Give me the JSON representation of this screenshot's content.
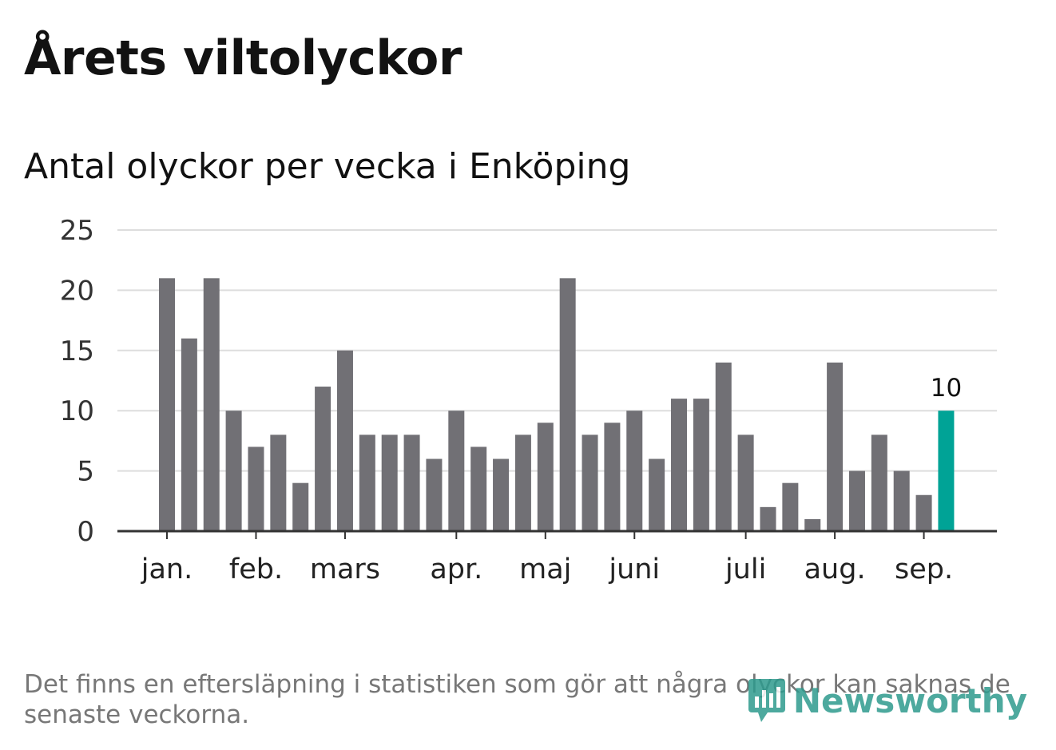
{
  "title": "Årets viltolyckor",
  "subtitle": "Antal olyckor per vecka i Enköping",
  "footnote": "Det finns en eftersläpning i statistiken som gör att några olyckor kan saknas de senaste veckorna.",
  "brand": {
    "name": "Newsworthy",
    "icon": "newsworthy-logo-icon"
  },
  "colors": {
    "bar": "#717075",
    "highlight": "#00a396",
    "grid": "#dddddd",
    "axis": "#333333"
  },
  "chart_data": {
    "type": "bar",
    "title": "Antal olyckor per vecka i Enköping",
    "xlabel": "",
    "ylabel": "",
    "ylim": [
      0,
      25
    ],
    "yticks": [
      0,
      5,
      10,
      15,
      20,
      25
    ],
    "grid": true,
    "values": [
      21,
      16,
      21,
      10,
      7,
      8,
      4,
      12,
      15,
      8,
      8,
      8,
      6,
      10,
      7,
      6,
      8,
      9,
      21,
      8,
      9,
      10,
      6,
      11,
      11,
      14,
      8,
      2,
      4,
      1,
      14,
      5,
      8,
      5,
      3,
      10
    ],
    "highlight_index": 35,
    "data_labels": [
      {
        "index": 35,
        "text": "10"
      }
    ],
    "month_labels": [
      {
        "label": "jan.",
        "position": 0
      },
      {
        "label": "feb.",
        "position": 4
      },
      {
        "label": "mars",
        "position": 8
      },
      {
        "label": "apr.",
        "position": 13
      },
      {
        "label": "maj",
        "position": 17
      },
      {
        "label": "juni",
        "position": 21
      },
      {
        "label": "juli",
        "position": 26
      },
      {
        "label": "aug.",
        "position": 30
      },
      {
        "label": "sep.",
        "position": 34
      }
    ]
  }
}
